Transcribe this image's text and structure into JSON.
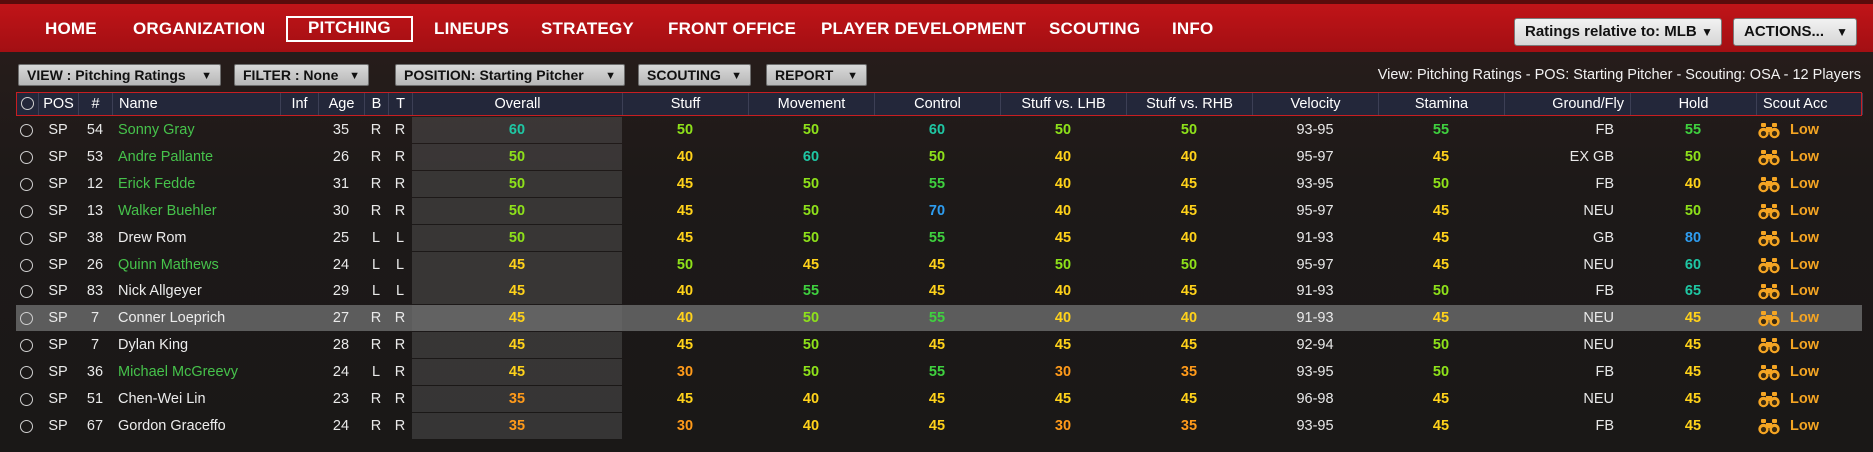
{
  "colors": {
    "nav_red": "#b5121b",
    "r80": "#2e9df0",
    "r70": "#2e9df0",
    "r65": "#1fc7a4",
    "r60": "#1fc7a4",
    "r55": "#3fd13f",
    "r50": "#8ee11a",
    "r45": "#ffd21a",
    "r40": "#ffd21a",
    "r35": "#ff9a1a",
    "r30": "#ff9a1a"
  },
  "nav": {
    "items": [
      "HOME",
      "ORGANIZATION",
      "PITCHING",
      "LINEUPS",
      "STRATEGY",
      "FRONT OFFICE",
      "PLAYER DEVELOPMENT",
      "SCOUTING",
      "INFO"
    ],
    "active": "PITCHING",
    "ratings_dropdown": "Ratings relative to: MLB",
    "actions_dropdown": "ACTIONS..."
  },
  "filters": {
    "view": "VIEW : Pitching Ratings",
    "filter": "FILTER : None",
    "position": "POSITION: Starting Pitcher",
    "scouting": "SCOUTING",
    "report": "REPORT"
  },
  "summary": "View: Pitching Ratings - POS: Starting Pitcher - Scouting: OSA - 12 Players",
  "table": {
    "columns": [
      "POS",
      "#",
      "Name",
      "Inf",
      "Age",
      "B",
      "T",
      "Overall",
      "Stuff",
      "Movement",
      "Control",
      "Stuff vs. LHB",
      "Stuff vs. RHB",
      "Velocity",
      "Stamina",
      "Ground/Fly",
      "Hold",
      "Scout Acc"
    ],
    "rows": [
      {
        "pos": "SP",
        "num": "54",
        "name": "Sonny Gray",
        "inf": "",
        "age": "35",
        "b": "R",
        "t": "R",
        "overall": "60",
        "stuff": "50",
        "movement": "50",
        "control": "60",
        "vs_lhb": "50",
        "vs_rhb": "50",
        "velocity": "93-95",
        "stamina": "55",
        "gf": "FB",
        "hold": "55",
        "acc": "Low",
        "name_color": "green"
      },
      {
        "pos": "SP",
        "num": "53",
        "name": "Andre Pallante",
        "inf": "",
        "age": "26",
        "b": "R",
        "t": "R",
        "overall": "50",
        "stuff": "40",
        "movement": "60",
        "control": "50",
        "vs_lhb": "40",
        "vs_rhb": "40",
        "velocity": "95-97",
        "stamina": "45",
        "gf": "EX GB",
        "hold": "50",
        "acc": "Low",
        "name_color": "green"
      },
      {
        "pos": "SP",
        "num": "12",
        "name": "Erick Fedde",
        "inf": "",
        "age": "31",
        "b": "R",
        "t": "R",
        "overall": "50",
        "stuff": "45",
        "movement": "50",
        "control": "55",
        "vs_lhb": "40",
        "vs_rhb": "45",
        "velocity": "93-95",
        "stamina": "50",
        "gf": "FB",
        "hold": "40",
        "acc": "Low",
        "name_color": "green"
      },
      {
        "pos": "SP",
        "num": "13",
        "name": "Walker Buehler",
        "inf": "",
        "age": "30",
        "b": "R",
        "t": "R",
        "overall": "50",
        "stuff": "45",
        "movement": "50",
        "control": "70",
        "vs_lhb": "40",
        "vs_rhb": "45",
        "velocity": "95-97",
        "stamina": "45",
        "gf": "NEU",
        "hold": "50",
        "acc": "Low",
        "name_color": "green"
      },
      {
        "pos": "SP",
        "num": "38",
        "name": "Drew Rom",
        "inf": "",
        "age": "25",
        "b": "L",
        "t": "L",
        "overall": "50",
        "stuff": "45",
        "movement": "50",
        "control": "55",
        "vs_lhb": "45",
        "vs_rhb": "40",
        "velocity": "91-93",
        "stamina": "45",
        "gf": "GB",
        "hold": "80",
        "acc": "Low",
        "name_color": "white"
      },
      {
        "pos": "SP",
        "num": "26",
        "name": "Quinn Mathews",
        "inf": "",
        "age": "24",
        "b": "L",
        "t": "L",
        "overall": "45",
        "stuff": "50",
        "movement": "45",
        "control": "45",
        "vs_lhb": "50",
        "vs_rhb": "50",
        "velocity": "95-97",
        "stamina": "45",
        "gf": "NEU",
        "hold": "60",
        "acc": "Low",
        "name_color": "green"
      },
      {
        "pos": "SP",
        "num": "83",
        "name": "Nick Allgeyer",
        "inf": "",
        "age": "29",
        "b": "L",
        "t": "L",
        "overall": "45",
        "stuff": "40",
        "movement": "55",
        "control": "45",
        "vs_lhb": "40",
        "vs_rhb": "45",
        "velocity": "91-93",
        "stamina": "50",
        "gf": "FB",
        "hold": "65",
        "acc": "Low",
        "name_color": "white"
      },
      {
        "pos": "SP",
        "num": "7",
        "name": "Conner Loeprich",
        "inf": "",
        "age": "27",
        "b": "R",
        "t": "R",
        "overall": "45",
        "stuff": "40",
        "movement": "50",
        "control": "55",
        "vs_lhb": "40",
        "vs_rhb": "40",
        "velocity": "91-93",
        "stamina": "45",
        "gf": "NEU",
        "hold": "45",
        "acc": "Low",
        "name_color": "white",
        "selected": true
      },
      {
        "pos": "SP",
        "num": "7",
        "name": "Dylan King",
        "inf": "",
        "age": "28",
        "b": "R",
        "t": "R",
        "overall": "45",
        "stuff": "45",
        "movement": "50",
        "control": "45",
        "vs_lhb": "45",
        "vs_rhb": "45",
        "velocity": "92-94",
        "stamina": "50",
        "gf": "NEU",
        "hold": "45",
        "acc": "Low",
        "name_color": "white"
      },
      {
        "pos": "SP",
        "num": "36",
        "name": "Michael McGreevy",
        "inf": "",
        "age": "24",
        "b": "L",
        "t": "R",
        "overall": "45",
        "stuff": "30",
        "movement": "50",
        "control": "55",
        "vs_lhb": "30",
        "vs_rhb": "35",
        "velocity": "93-95",
        "stamina": "50",
        "gf": "FB",
        "hold": "45",
        "acc": "Low",
        "name_color": "green"
      },
      {
        "pos": "SP",
        "num": "51",
        "name": "Chen-Wei Lin",
        "inf": "",
        "age": "23",
        "b": "R",
        "t": "R",
        "overall": "35",
        "stuff": "45",
        "movement": "40",
        "control": "45",
        "vs_lhb": "45",
        "vs_rhb": "45",
        "velocity": "96-98",
        "stamina": "45",
        "gf": "NEU",
        "hold": "45",
        "acc": "Low",
        "name_color": "white"
      },
      {
        "pos": "SP",
        "num": "67",
        "name": "Gordon Graceffo",
        "inf": "",
        "age": "24",
        "b": "R",
        "t": "R",
        "overall": "35",
        "stuff": "30",
        "movement": "40",
        "control": "45",
        "vs_lhb": "30",
        "vs_rhb": "35",
        "velocity": "93-95",
        "stamina": "45",
        "gf": "FB",
        "hold": "45",
        "acc": "Low",
        "name_color": "white"
      }
    ]
  }
}
